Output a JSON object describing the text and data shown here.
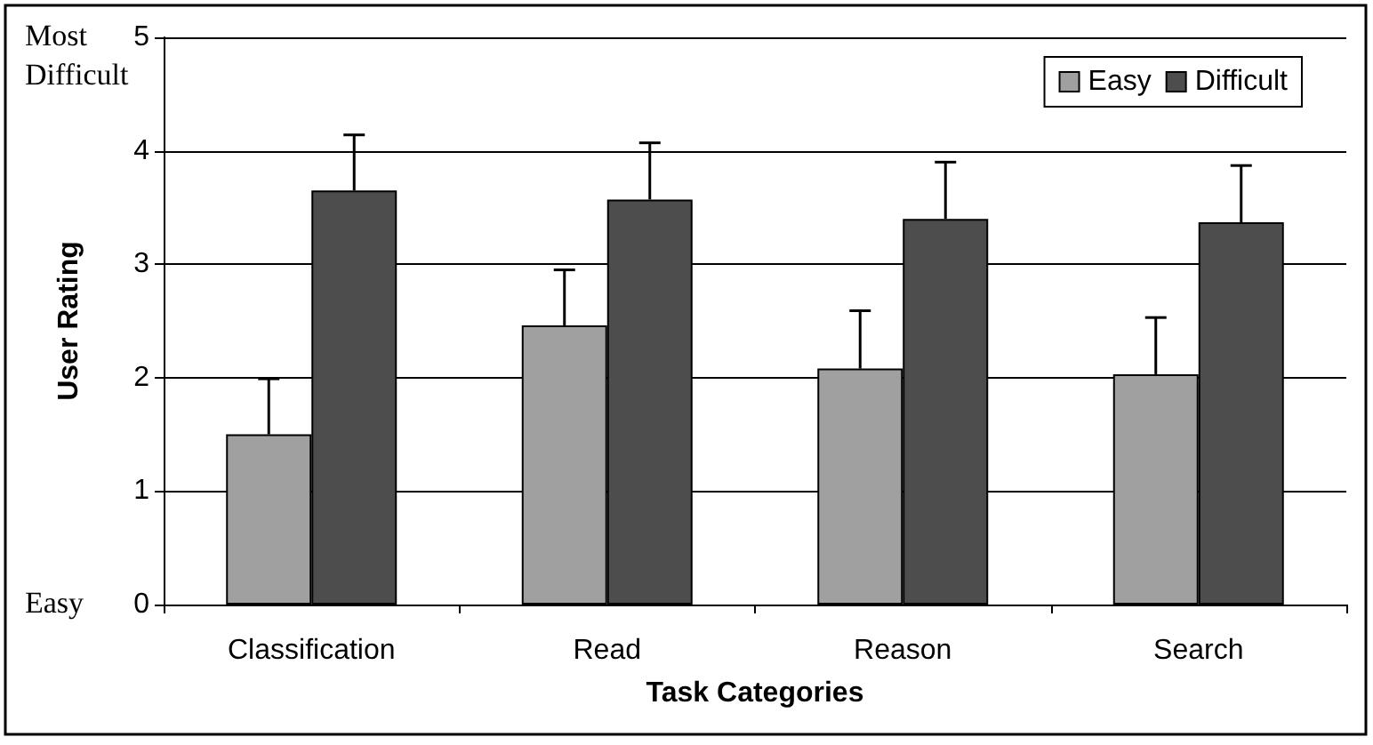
{
  "chart_data": {
    "type": "bar",
    "xlabel": "Task Categories",
    "ylabel": "User Rating",
    "categories": [
      "Classification",
      "Read",
      "Reason",
      "Search"
    ],
    "series": [
      {
        "name": "Easy",
        "color": "#a0a0a0",
        "values": [
          1.5,
          2.46,
          2.08,
          2.03
        ],
        "errors": [
          [
            1.5,
            1.99
          ],
          [
            2.46,
            2.95
          ],
          [
            2.08,
            2.59
          ],
          [
            2.03,
            2.53
          ]
        ]
      },
      {
        "name": "Difficult",
        "color": "#4d4d4d",
        "values": [
          3.65,
          3.57,
          3.4,
          3.37
        ],
        "errors": [
          [
            3.65,
            4.14
          ],
          [
            3.57,
            4.07
          ],
          [
            3.4,
            3.9
          ],
          [
            3.37,
            3.87
          ]
        ]
      }
    ],
    "ylim": [
      0,
      5
    ],
    "yticks": [
      0,
      1,
      2,
      3,
      4,
      5
    ],
    "grid": "y",
    "legend": "top right",
    "annotations": [
      "Most\nDifficult",
      "Easy"
    ]
  }
}
